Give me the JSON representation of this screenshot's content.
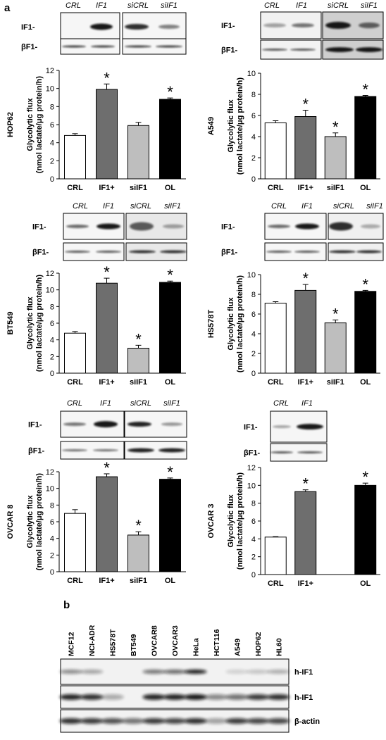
{
  "panel_a_label": "a",
  "panel_b_label": "b",
  "lane_labels": {
    "crl": "CRL",
    "if1": "IF1",
    "sicrl": "siCRL",
    "siif1": "siIF1"
  },
  "blot_rows": {
    "if1": "IF1-",
    "bf1": "βF1-"
  },
  "axis": {
    "ylabel_line1": "Glycolytic flux",
    "ylabel_line2": "(nmol lactate/μg protein/h)"
  },
  "significance_marker": "*",
  "chart_data": [
    {
      "type": "bar",
      "cell_line": "HOP62",
      "categories": [
        "CRL",
        "IF1+",
        "siIF1",
        "OL"
      ],
      "values": [
        4.8,
        9.9,
        5.9,
        8.8
      ],
      "errors": [
        0.2,
        0.6,
        0.35,
        0.15
      ],
      "significant": [
        false,
        true,
        false,
        true
      ],
      "ylim": [
        0,
        12
      ],
      "yticks": [
        0,
        2,
        4,
        6,
        8,
        10,
        12
      ],
      "bar_colors": [
        "#ffffff",
        "#6e6e6e",
        "#bebebe",
        "#000000"
      ]
    },
    {
      "type": "bar",
      "cell_line": "A549",
      "categories": [
        "CRL",
        "IF1+",
        "siIF1",
        "OL"
      ],
      "values": [
        5.3,
        5.9,
        4.0,
        7.8
      ],
      "errors": [
        0.2,
        0.6,
        0.35,
        0.1
      ],
      "significant": [
        false,
        true,
        true,
        true
      ],
      "ylim": [
        0,
        10
      ],
      "yticks": [
        0,
        2,
        4,
        6,
        8,
        10
      ],
      "bar_colors": [
        "#ffffff",
        "#6e6e6e",
        "#bebebe",
        "#000000"
      ]
    },
    {
      "type": "bar",
      "cell_line": "BT549",
      "categories": [
        "CRL",
        "IF1+",
        "siIF1",
        "OL"
      ],
      "values": [
        4.8,
        10.8,
        3.0,
        10.9
      ],
      "errors": [
        0.2,
        0.6,
        0.35,
        0.15
      ],
      "significant": [
        false,
        true,
        true,
        true
      ],
      "ylim": [
        0,
        12
      ],
      "yticks": [
        0,
        2,
        4,
        6,
        8,
        10,
        12
      ],
      "bar_colors": [
        "#ffffff",
        "#6e6e6e",
        "#bebebe",
        "#000000"
      ]
    },
    {
      "type": "bar",
      "cell_line": "HS578T",
      "categories": [
        "CRL",
        "IF1+",
        "siIF1",
        "OL"
      ],
      "values": [
        7.1,
        8.4,
        5.1,
        8.3
      ],
      "errors": [
        0.15,
        0.6,
        0.3,
        0.1
      ],
      "significant": [
        false,
        true,
        true,
        true
      ],
      "ylim": [
        0,
        10
      ],
      "yticks": [
        0,
        2,
        4,
        6,
        8,
        10
      ],
      "bar_colors": [
        "#ffffff",
        "#6e6e6e",
        "#bebebe",
        "#000000"
      ]
    },
    {
      "type": "bar",
      "cell_line": "OVCAR 8",
      "categories": [
        "CRL",
        "IF1+",
        "siIF1",
        "OL"
      ],
      "values": [
        7.0,
        11.4,
        4.4,
        11.1
      ],
      "errors": [
        0.45,
        0.35,
        0.4,
        0.15
      ],
      "significant": [
        false,
        true,
        true,
        true
      ],
      "ylim": [
        0,
        12
      ],
      "yticks": [
        0,
        2,
        4,
        6,
        8,
        10,
        12
      ],
      "bar_colors": [
        "#ffffff",
        "#6e6e6e",
        "#bebebe",
        "#000000"
      ]
    },
    {
      "type": "bar",
      "cell_line": "OVCAR 3",
      "categories": [
        "CRL",
        "IF1+",
        "",
        "OL"
      ],
      "values": [
        4.2,
        9.3,
        null,
        10.0
      ],
      "errors": [
        0.05,
        0.2,
        null,
        0.25
      ],
      "significant": [
        false,
        true,
        false,
        true
      ],
      "ylim": [
        0,
        12
      ],
      "yticks": [
        0,
        2,
        4,
        6,
        8,
        10,
        12
      ],
      "bar_colors": [
        "#ffffff",
        "#6e6e6e",
        "#bebebe",
        "#000000"
      ]
    }
  ],
  "panel_b": {
    "cell_lines": [
      "MCF12",
      "NCI-ADR",
      "HS578T",
      "BT549",
      "OVCAR8",
      "OVCAR3",
      "HeLa",
      "HCT116",
      "A549",
      "HOP62",
      "HL60"
    ],
    "rows": [
      "h-IF1",
      "h-IF1",
      "β-actin"
    ]
  }
}
